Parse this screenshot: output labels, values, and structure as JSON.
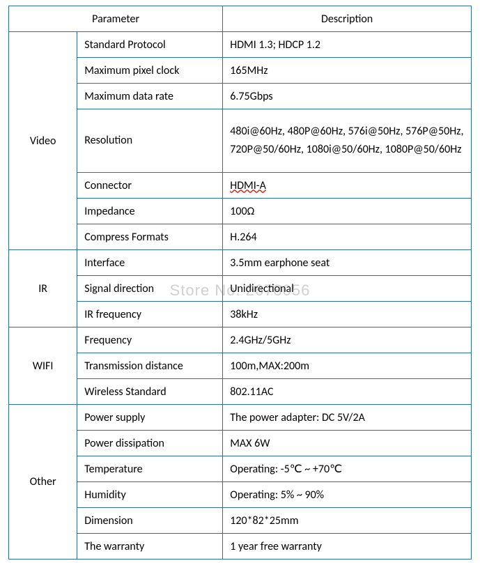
{
  "table": {
    "border_color": "#2b6cb0",
    "text_color": "#000000",
    "bg_color": "#ffffff",
    "font_family": "Calibri, Arial, sans-serif",
    "font_size": 16,
    "header": {
      "parameter_label": "Parameter",
      "description_label": "Description"
    },
    "sections": [
      {
        "category": "Video",
        "rows": [
          {
            "param": "Standard Protocol",
            "desc": "HDMI 1.3; HDCP 1.2"
          },
          {
            "param": "Maximum pixel clock",
            "desc": "165MHz"
          },
          {
            "param": "Maximum data rate",
            "desc": "6.75Gbps"
          },
          {
            "param": "Resolution",
            "desc": "480i@60Hz, 480P@60Hz, 576i@50Hz, 576P@50Hz, 720P@50/60Hz, 1080i@50/60Hz, 1080P@50/60Hz"
          },
          {
            "param": "Connector",
            "desc": "HDMI-A",
            "underline": true
          },
          {
            "param": "Impedance",
            "desc": "100Ω"
          },
          {
            "param": "Compress Formats",
            "desc": "H.264"
          }
        ]
      },
      {
        "category": "IR",
        "rows": [
          {
            "param": "Interface",
            "desc": "3.5mm earphone seat"
          },
          {
            "param": "Signal direction",
            "desc": "Unidirectional"
          },
          {
            "param": "IR frequency",
            "desc": "38kHz"
          }
        ]
      },
      {
        "category": "WIFI",
        "rows": [
          {
            "param": "Frequency",
            "desc": "2.4GHz/5GHz"
          },
          {
            "param": "Transmission distance",
            "desc": "100m,MAX:200m"
          },
          {
            "param": "Wireless Standard",
            "desc": "802.11AC"
          }
        ]
      },
      {
        "category": "Other",
        "rows": [
          {
            "param": "Power supply",
            "desc": "The power adapter: DC 5V/2A"
          },
          {
            "param": "Power dissipation",
            "desc": "MAX 6W"
          },
          {
            "param": "Temperature",
            "desc": "Operating: -5℃  ~ +70℃"
          },
          {
            "param": "Humidity",
            "desc": "Operating: 5% ~ 90%"
          },
          {
            "param": "Dimension",
            "desc": "120*82*25mm"
          },
          {
            "param": "The warranty",
            "desc": "1 year free warranty"
          }
        ]
      }
    ]
  },
  "watermark": {
    "text": "Store No: 2678056",
    "color": "rgba(120,120,120,0.35)",
    "font_size": 22
  }
}
